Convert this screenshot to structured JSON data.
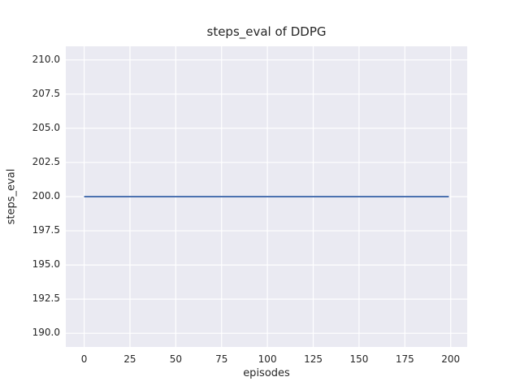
{
  "figure": {
    "background_color": "#ffffff",
    "plot_background_color": "#eaeaf2",
    "grid_color": "#ffffff",
    "text_color": "#262626"
  },
  "chart_data": {
    "type": "line",
    "title": "steps_eval of DDPG",
    "xlabel": "episodes",
    "ylabel": "steps_eval",
    "xlim": [
      -10,
      209
    ],
    "ylim": [
      189,
      211
    ],
    "xticks": [
      0,
      25,
      50,
      75,
      100,
      125,
      150,
      175,
      200
    ],
    "xtick_labels": [
      "0",
      "25",
      "50",
      "75",
      "100",
      "125",
      "150",
      "175",
      "200"
    ],
    "yticks": [
      190.0,
      192.5,
      195.0,
      197.5,
      200.0,
      202.5,
      205.0,
      207.5,
      210.0
    ],
    "ytick_labels": [
      "190.0",
      "192.5",
      "195.0",
      "197.5",
      "200.0",
      "202.5",
      "205.0",
      "207.5",
      "210.0"
    ],
    "grid": true,
    "legend": false,
    "series": [
      {
        "name": "DDPG steps_eval",
        "color": "#4c72b0",
        "linewidth": 2,
        "x": [
          0,
          199
        ],
        "y": [
          200,
          200
        ],
        "note": "constant value 200 for all episodes 0-199"
      }
    ]
  }
}
